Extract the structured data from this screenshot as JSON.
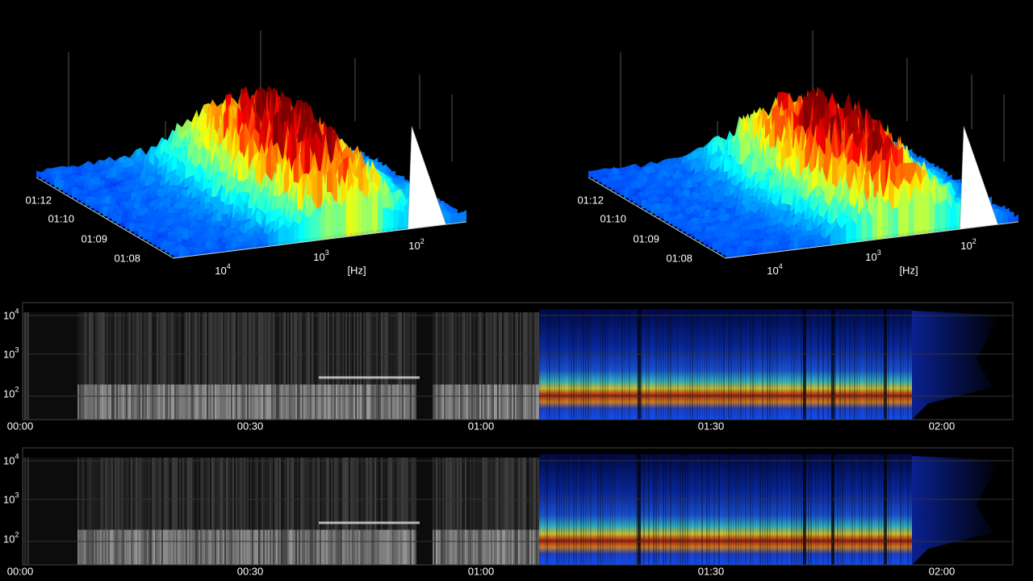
{
  "waterfalls": [
    {
      "time_labels": [
        "01:12",
        "01:10",
        "01:09",
        "01:08"
      ],
      "freq_labels": [
        {
          "base": "10",
          "exp": "4"
        },
        {
          "base": "10",
          "exp": "3"
        },
        {
          "base": "10",
          "exp": "2"
        }
      ],
      "unit": "[Hz]"
    },
    {
      "time_labels": [
        "01:12",
        "01:10",
        "01:09",
        "01:08"
      ],
      "freq_labels": [
        {
          "base": "10",
          "exp": "4"
        },
        {
          "base": "10",
          "exp": "3"
        },
        {
          "base": "10",
          "exp": "2"
        }
      ],
      "unit": "[Hz]"
    }
  ],
  "spectrograms": [
    {
      "freq_labels": [
        {
          "base": "10",
          "exp": "4"
        },
        {
          "base": "10",
          "exp": "3"
        },
        {
          "base": "10",
          "exp": "2"
        }
      ],
      "time_labels": [
        "00:00",
        "00:30",
        "01:00",
        "01:30",
        "02:00"
      ]
    },
    {
      "freq_labels": [
        {
          "base": "10",
          "exp": "4"
        },
        {
          "base": "10",
          "exp": "3"
        },
        {
          "base": "10",
          "exp": "2"
        }
      ],
      "time_labels": [
        "00:00",
        "00:30",
        "01:00",
        "01:30",
        "02:00"
      ]
    }
  ]
}
